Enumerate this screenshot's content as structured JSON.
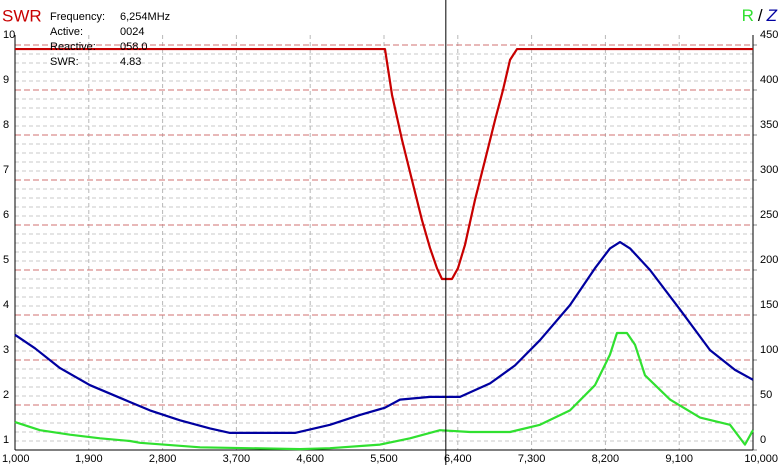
{
  "chart_data": {
    "type": "line",
    "info": {
      "labels": [
        "Frequency:",
        "Active:",
        "Reactive:",
        "SWR:"
      ],
      "values": [
        "6,254MHz",
        "0024",
        "058.0",
        "4.83"
      ]
    },
    "y2_separator": "/",
    "cursor_x": 6254,
    "xlim": [
      1000,
      10000
    ],
    "xticks": [
      {
        "value": 1000,
        "label": "1,000"
      },
      {
        "value": 1900,
        "label": "1,900"
      },
      {
        "value": 2800,
        "label": "2,800"
      },
      {
        "value": 3700,
        "label": "3,700"
      },
      {
        "value": 4600,
        "label": "4,600"
      },
      {
        "value": 5500,
        "label": "5,500"
      },
      {
        "value": 6400,
        "label": "6,400"
      },
      {
        "value": 7300,
        "label": "7,300"
      },
      {
        "value": 8200,
        "label": "8,200"
      },
      {
        "value": 9100,
        "label": "9,100"
      },
      {
        "value": 10000,
        "label": "10,000"
      }
    ],
    "ylim": [
      1,
      10
    ],
    "yticks": [
      1,
      2,
      3,
      4,
      5,
      6,
      7,
      8,
      9,
      10
    ],
    "y_minor_ticks": [
      1.2,
      1.4,
      1.6,
      1.8,
      2.2,
      2.4,
      2.6,
      2.8,
      3.2,
      3.4,
      3.6,
      3.8,
      4.2,
      4.4,
      4.6,
      4.8,
      5.2,
      5.4,
      5.6,
      5.8,
      6.2,
      6.4,
      6.6,
      6.8,
      7.2,
      7.4,
      7.6,
      7.8,
      8.2,
      8.4,
      8.6,
      8.8,
      9.2,
      9.4,
      9.6,
      9.8
    ],
    "y2lim": [
      0,
      450
    ],
    "y2ticks": [
      0,
      50,
      100,
      150,
      200,
      250,
      300,
      350,
      400,
      450
    ],
    "grid": true,
    "series": [
      {
        "name": "SWR",
        "color": "#c80000",
        "axis": "y",
        "x": [
          1000,
          5512,
          5598,
          5720,
          5841,
          5963,
          6061,
          6146,
          6207,
          6329,
          6402,
          6488,
          6610,
          6732,
          6854,
          6951,
          7037,
          7122,
          10000
        ],
        "values": [
          9.91,
          9.91,
          8.89,
          7.89,
          7.0,
          6.11,
          5.49,
          5.04,
          4.8,
          4.8,
          5.04,
          5.56,
          6.56,
          7.44,
          8.33,
          9.0,
          9.67,
          9.91,
          9.91
        ]
      },
      {
        "name": "Z",
        "color": "#0000a0",
        "axis": "y2",
        "x": [
          1000,
          1244,
          1549,
          1915,
          2280,
          2646,
          3012,
          3378,
          3622,
          3988,
          4415,
          4841,
          5207,
          5512,
          5695,
          6061,
          6427,
          6793,
          7098,
          7402,
          7768,
          8073,
          8256,
          8378,
          8500,
          8744,
          9110,
          9476,
          9780,
          10000
        ],
        "values": [
          128,
          113,
          91,
          72,
          58,
          44,
          33,
          24,
          19,
          19,
          19,
          28,
          39,
          47,
          56,
          59,
          59,
          74,
          94,
          122,
          161,
          202,
          224,
          231,
          224,
          200,
          156,
          111,
          89,
          78
        ]
      },
      {
        "name": "R",
        "color": "#30e030",
        "axis": "y2",
        "x": [
          1000,
          1305,
          1671,
          2037,
          2402,
          2524,
          3256,
          4476,
          4841,
          5451,
          5817,
          6183,
          6549,
          7037,
          7402,
          7768,
          8073,
          8256,
          8341,
          8463,
          8561,
          8683,
          8988,
          9354,
          9720,
          9902,
          10000
        ],
        "values": [
          31,
          22,
          17,
          13,
          10,
          8,
          3,
          1,
          2,
          6,
          13,
          22,
          20,
          20,
          28,
          44,
          72,
          106,
          130,
          130,
          117,
          83,
          56,
          36,
          28,
          6,
          22
        ]
      }
    ]
  }
}
